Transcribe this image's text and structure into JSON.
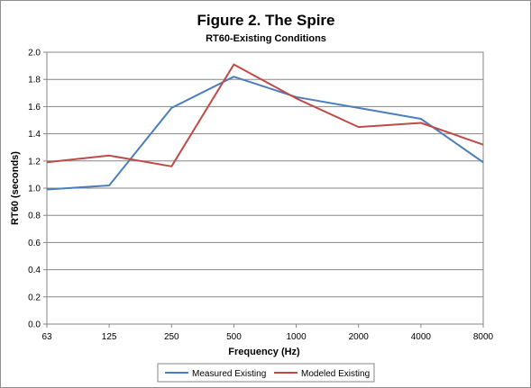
{
  "chart_data": {
    "type": "line",
    "title": "Figure 2. The Spire",
    "subtitle": "RT60-Existing Conditions",
    "xlabel": "Frequency (Hz)",
    "ylabel": "RT60 (seconds)",
    "categories": [
      "63",
      "125",
      "250",
      "500",
      "1000",
      "2000",
      "4000",
      "8000"
    ],
    "ylim": [
      0,
      2.0
    ],
    "yticks": [
      "0.0",
      "0.2",
      "0.4",
      "0.6",
      "0.8",
      "1.0",
      "1.2",
      "1.4",
      "1.6",
      "1.8",
      "2.0"
    ],
    "grid": true,
    "legend_position": "bottom",
    "series": [
      {
        "name": "Measured Existing",
        "color": "#4a7ebb",
        "values": [
          0.99,
          1.02,
          1.59,
          1.82,
          1.67,
          1.59,
          1.51,
          1.19
        ]
      },
      {
        "name": "Modeled Existing",
        "color": "#be4b48",
        "values": [
          1.19,
          1.24,
          1.16,
          1.91,
          1.66,
          1.45,
          1.48,
          1.32
        ]
      }
    ]
  }
}
